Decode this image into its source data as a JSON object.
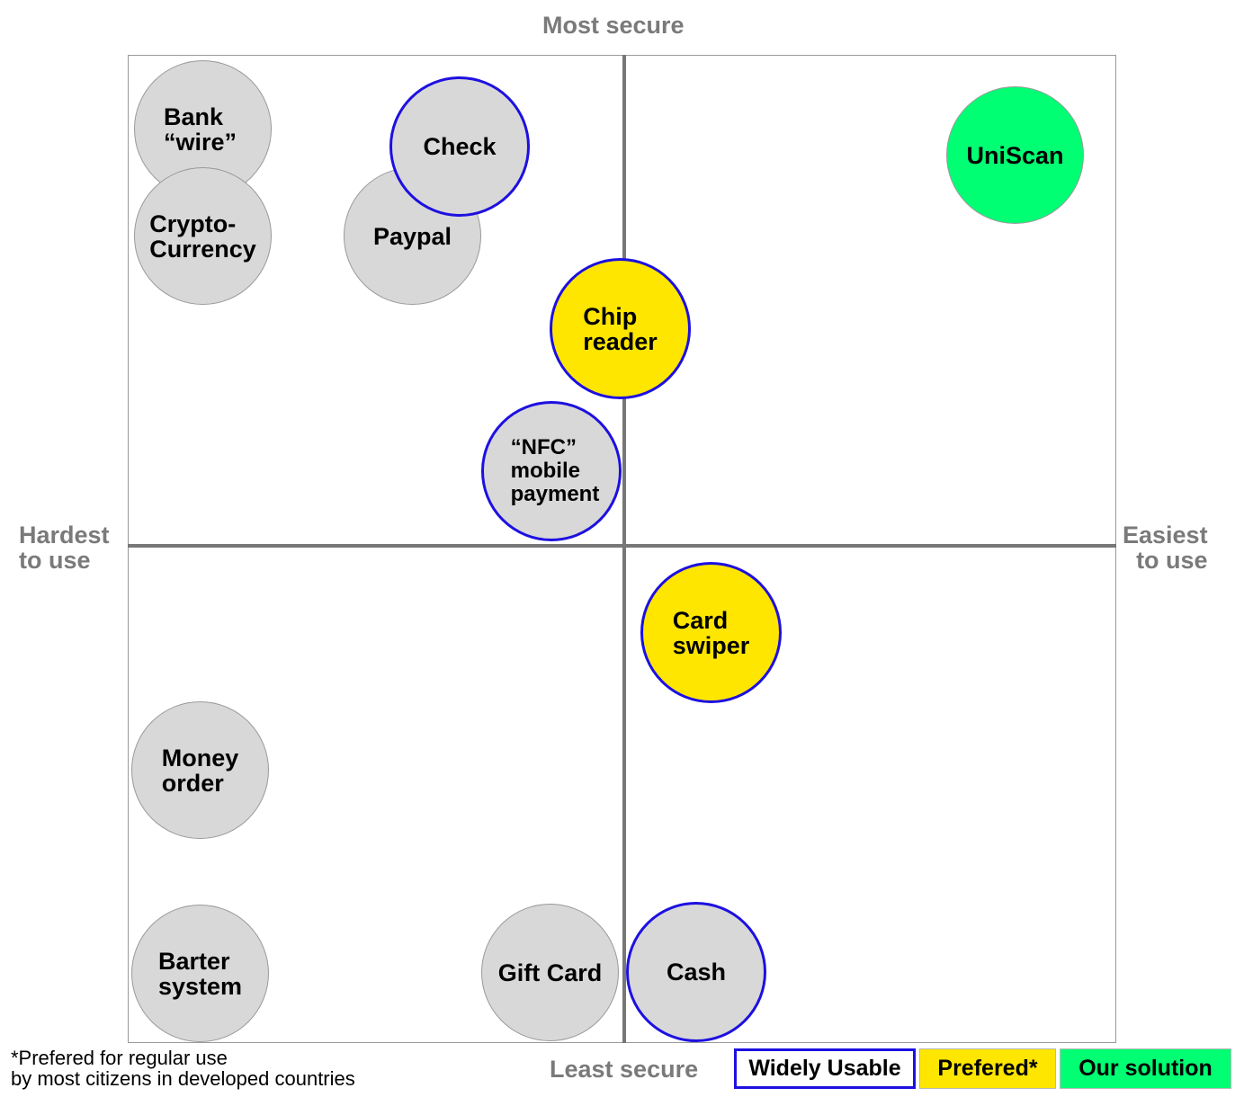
{
  "axes": {
    "top": "Most secure",
    "bottom": "Least secure",
    "left": [
      "Hardest",
      "to use"
    ],
    "right": [
      "Easiest",
      "to use"
    ]
  },
  "colors": {
    "widely_border": "#1d10e0",
    "prefered": "#ffe600",
    "our_solution": "#00ff73",
    "neutral": "#d8d8d8"
  },
  "items": [
    {
      "label": "Bank\n“wire”",
      "category": "neutral"
    },
    {
      "label": "Crypto-\nCurrency",
      "category": "neutral"
    },
    {
      "label": "Check",
      "category": "widely"
    },
    {
      "label": "Paypal",
      "category": "neutral"
    },
    {
      "label": "UniScan",
      "category": "our_solution"
    },
    {
      "label": "Chip\nreader",
      "category": "prefered_widely"
    },
    {
      "label": "“NFC”\nmobile\npayment",
      "category": "widely"
    },
    {
      "label": "Card\nswiper",
      "category": "prefered_widely"
    },
    {
      "label": "Money\norder",
      "category": "neutral"
    },
    {
      "label": "Barter\nsystem",
      "category": "neutral"
    },
    {
      "label": "Gift Card",
      "category": "neutral"
    },
    {
      "label": "Cash",
      "category": "widely"
    }
  ],
  "footnote": [
    "*Prefered for regular use",
    "by most citizens in developed countries"
  ],
  "legend": {
    "widely": "Widely Usable",
    "prefered": "Prefered*",
    "our_solution": "Our solution"
  }
}
